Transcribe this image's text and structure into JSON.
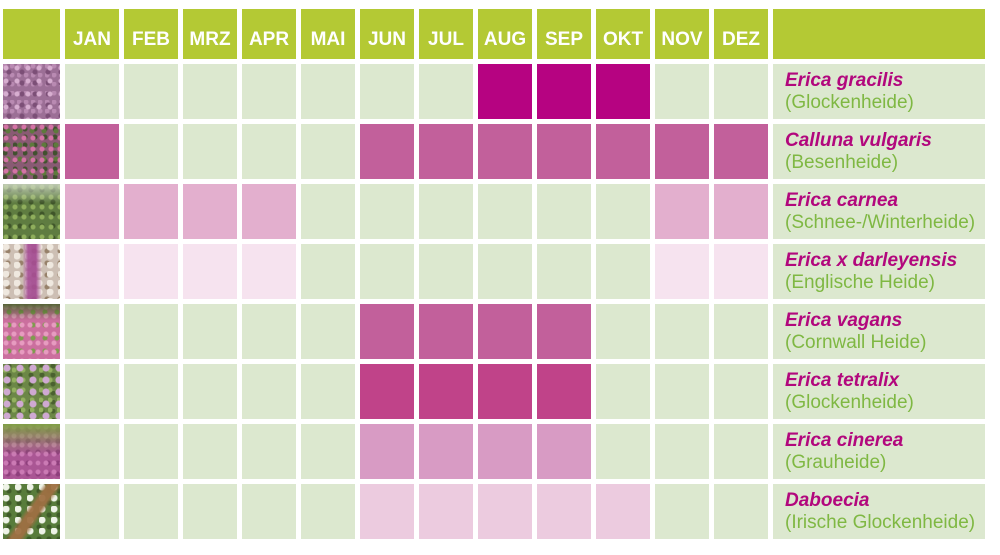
{
  "palette": {
    "header_bg": "#b4c934",
    "header_text": "#ffffff",
    "cell_bg": "#dce8cf",
    "gap_color": "#ffffff",
    "species_text": "#b2077d",
    "common_text": "#7fb843"
  },
  "chart_data": {
    "type": "heatmap",
    "x_categories": [
      "JAN",
      "FEB",
      "MRZ",
      "APR",
      "MAI",
      "JUN",
      "JUL",
      "AUG",
      "SEP",
      "OKT",
      "NOV",
      "DEZ"
    ],
    "legend_position": "none",
    "rows": [
      {
        "id": "gracilis",
        "species": "Erica gracilis",
        "common_name": "(Glockenheide)",
        "bloom_months": [
          "AUG",
          "SEP",
          "OKT"
        ],
        "bloom_color": "#b60381",
        "photo": "dense purple heather blossom spikes"
      },
      {
        "id": "calluna",
        "species": "Calluna vulgaris",
        "common_name": "(Besenheide)",
        "bloom_months": [
          "JAN",
          "JUN",
          "JUL",
          "AUG",
          "SEP",
          "OKT",
          "NOV",
          "DEZ"
        ],
        "bloom_color": "#c2609b",
        "photo": "pink heather flowers with green foliage"
      },
      {
        "id": "carnea",
        "species": "Erica carnea",
        "common_name": "(Schnee-/Winterheide)",
        "bloom_months": [
          "JAN",
          "FEB",
          "MRZ",
          "APR",
          "NOV",
          "DEZ"
        ],
        "bloom_color": "#e3afce",
        "photo": "green needle-leaved shrub"
      },
      {
        "id": "darleyensis",
        "species": "Erica x darleyensis",
        "common_name": "(Englische Heide)",
        "bloom_months": [
          "JAN",
          "FEB",
          "MRZ",
          "APR",
          "NOV",
          "DEZ"
        ],
        "bloom_color": "#f6e3ef",
        "photo": "white blossoms with central purple flower spike"
      },
      {
        "id": "vagans",
        "species": "Erica vagans",
        "common_name": "(Cornwall Heide)",
        "bloom_months": [
          "JUN",
          "JUL",
          "AUG",
          "SEP"
        ],
        "bloom_color": "#c2609b",
        "photo": "bright pink flower spikes with green tips"
      },
      {
        "id": "tetralix",
        "species": "Erica tetralix",
        "common_name": "(Glockenheide)",
        "bloom_months": [
          "JUN",
          "JUL",
          "AUG",
          "SEP"
        ],
        "bloom_color": "#c04389",
        "photo": "green foliage with scattered pale pink bell flowers"
      },
      {
        "id": "cinerea",
        "species": "Erica cinerea",
        "common_name": "(Grauheide)",
        "bloom_months": [
          "JUN",
          "JUL",
          "AUG",
          "SEP"
        ],
        "bloom_color": "#d89bc4",
        "photo": "magenta flower spikes under bright green shoots"
      },
      {
        "id": "daboecia",
        "species": "Daboecia",
        "common_name": "(Irische Glockenheide)",
        "bloom_months": [
          "JUN",
          "JUL",
          "AUG",
          "SEP",
          "OKT"
        ],
        "bloom_color": "#eccbdf",
        "photo": "green foliage with white flowers and diagonal brown branch"
      }
    ]
  }
}
